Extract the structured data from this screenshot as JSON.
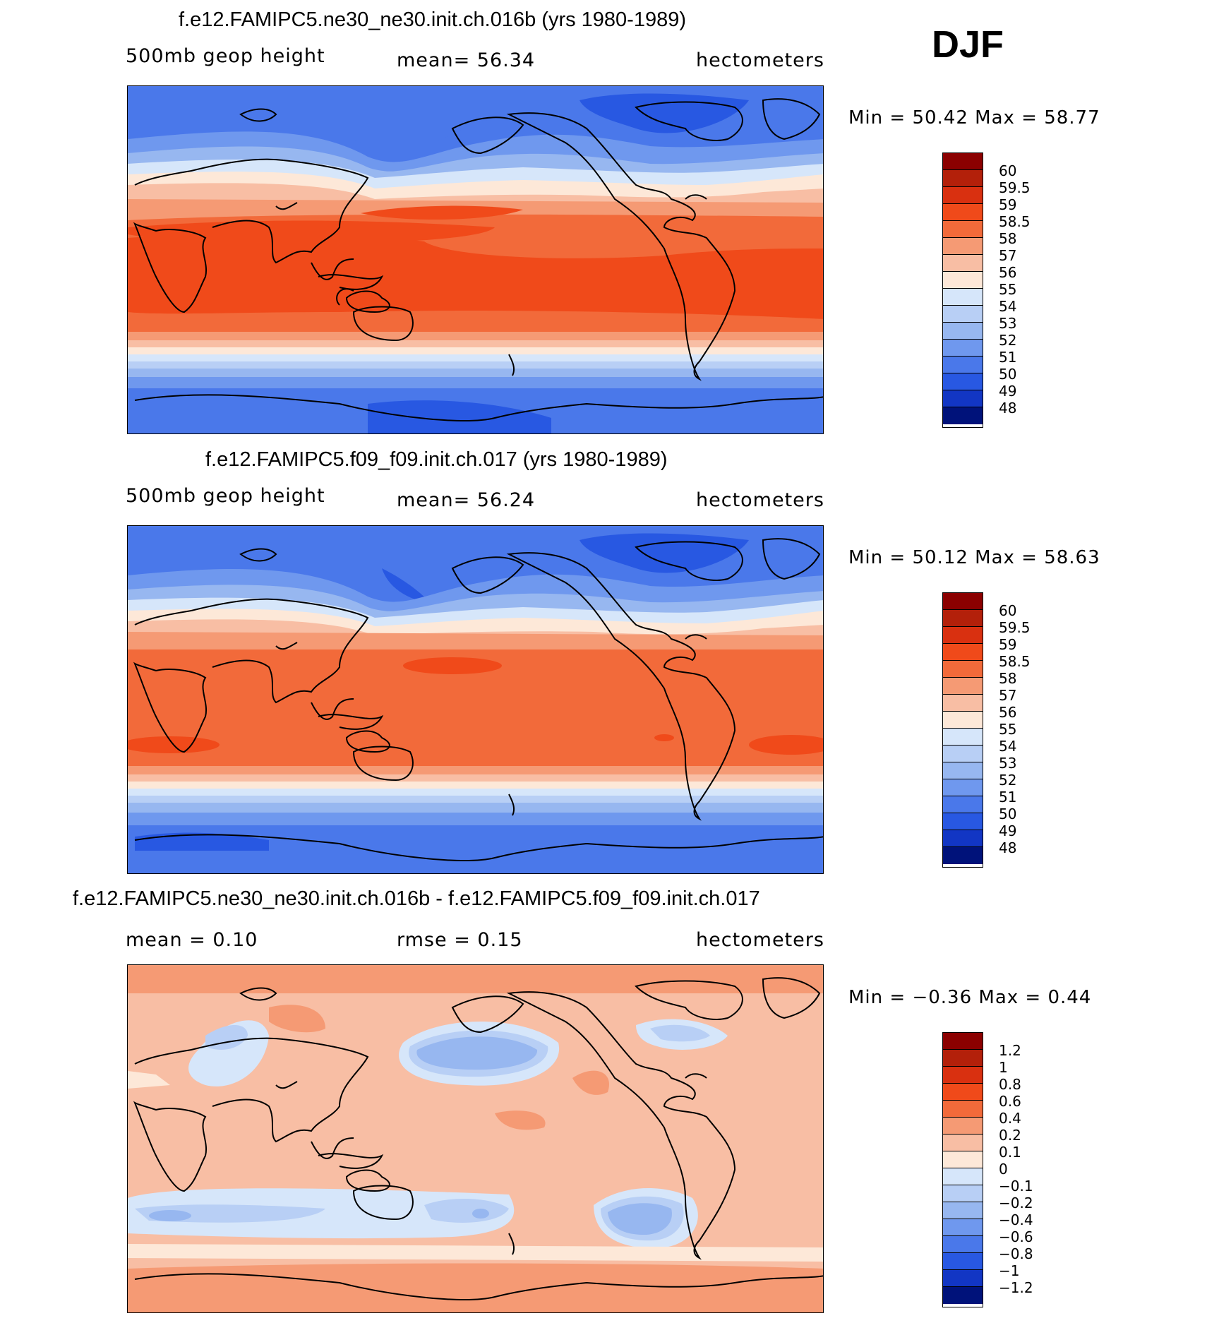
{
  "season": "DJF",
  "panels": [
    {
      "title": "f.e12.FAMIPC5.ne30_ne30.init.ch.016b (yrs 1980-1989)",
      "left_label": "500mb  geop  height",
      "center_label": "mean=   56.34",
      "units": "hectometers",
      "minmax": "Min  =    50.42  Max  =    58.77",
      "levels": [
        "60",
        "59.5",
        "59",
        "58.5",
        "58",
        "57",
        "56",
        "55",
        "54",
        "53",
        "52",
        "51",
        "50",
        "49",
        "48"
      ],
      "colors": [
        "#8b0000",
        "#b3200a",
        "#d93010",
        "#f04a1a",
        "#f26a3a",
        "#f59a74",
        "#f8bea4",
        "#fde8d8",
        "#d6e6fa",
        "#b8cff5",
        "#97b7f0",
        "#6f98ee",
        "#4a78ea",
        "#2858e2",
        "#1236c4",
        "#00127a"
      ]
    },
    {
      "title": "f.e12.FAMIPC5.f09_f09.init.ch.017 (yrs 1980-1989)",
      "left_label": "500mb  geop  height",
      "center_label": "mean=   56.24",
      "units": "hectometers",
      "minmax": "Min  =    50.12  Max  =    58.63",
      "levels": [
        "60",
        "59.5",
        "59",
        "58.5",
        "58",
        "57",
        "56",
        "55",
        "54",
        "53",
        "52",
        "51",
        "50",
        "49",
        "48"
      ],
      "colors": [
        "#8b0000",
        "#b3200a",
        "#d93010",
        "#f04a1a",
        "#f26a3a",
        "#f59a74",
        "#f8bea4",
        "#fde8d8",
        "#d6e6fa",
        "#b8cff5",
        "#97b7f0",
        "#6f98ee",
        "#4a78ea",
        "#2858e2",
        "#1236c4",
        "#00127a"
      ]
    },
    {
      "title": "f.e12.FAMIPC5.ne30_ne30.init.ch.016b - f.e12.FAMIPC5.f09_f09.init.ch.017",
      "left_label": "mean  =      0.10",
      "center_label": "rmse  =      0.15",
      "units": "hectometers",
      "minmax": "Min  =    −0.36  Max  =      0.44",
      "levels": [
        "1.2",
        "1",
        "0.8",
        "0.6",
        "0.4",
        "0.2",
        "0.1",
        "0",
        "−0.1",
        "−0.2",
        "−0.4",
        "−0.6",
        "−0.8",
        "−1",
        "−1.2"
      ],
      "colors": [
        "#8b0000",
        "#b3200a",
        "#d93010",
        "#f04a1a",
        "#f26a3a",
        "#f59a74",
        "#f8bea4",
        "#fde8d8",
        "#d6e6fa",
        "#b8cff5",
        "#97b7f0",
        "#6f98ee",
        "#4a78ea",
        "#2858e2",
        "#1236c4",
        "#00127a"
      ]
    }
  ],
  "chart_data": [
    {
      "type": "heatmap",
      "title": "f.e12.FAMIPC5.ne30_ne30.init.ch.016b (yrs 1980-1989)",
      "variable": "500mb geop height",
      "units": "hectometers",
      "season": "DJF",
      "mean": 56.34,
      "min": 50.42,
      "max": 58.77,
      "contour_levels": [
        48,
        49,
        50,
        51,
        52,
        53,
        54,
        55,
        56,
        57,
        58,
        58.5,
        59,
        59.5,
        60
      ]
    },
    {
      "type": "heatmap",
      "title": "f.e12.FAMIPC5.f09_f09.init.ch.017 (yrs 1980-1989)",
      "variable": "500mb geop height",
      "units": "hectometers",
      "season": "DJF",
      "mean": 56.24,
      "min": 50.12,
      "max": 58.63,
      "contour_levels": [
        48,
        49,
        50,
        51,
        52,
        53,
        54,
        55,
        56,
        57,
        58,
        58.5,
        59,
        59.5,
        60
      ]
    },
    {
      "type": "heatmap",
      "title": "f.e12.FAMIPC5.ne30_ne30.init.ch.016b - f.e12.FAMIPC5.f09_f09.init.ch.017",
      "units": "hectometers",
      "mean": 0.1,
      "rmse": 0.15,
      "min": -0.36,
      "max": 0.44,
      "contour_levels": [
        -1.2,
        -1,
        -0.8,
        -0.6,
        -0.4,
        -0.2,
        -0.1,
        0,
        0.1,
        0.2,
        0.4,
        0.6,
        0.8,
        1,
        1.2
      ]
    }
  ]
}
